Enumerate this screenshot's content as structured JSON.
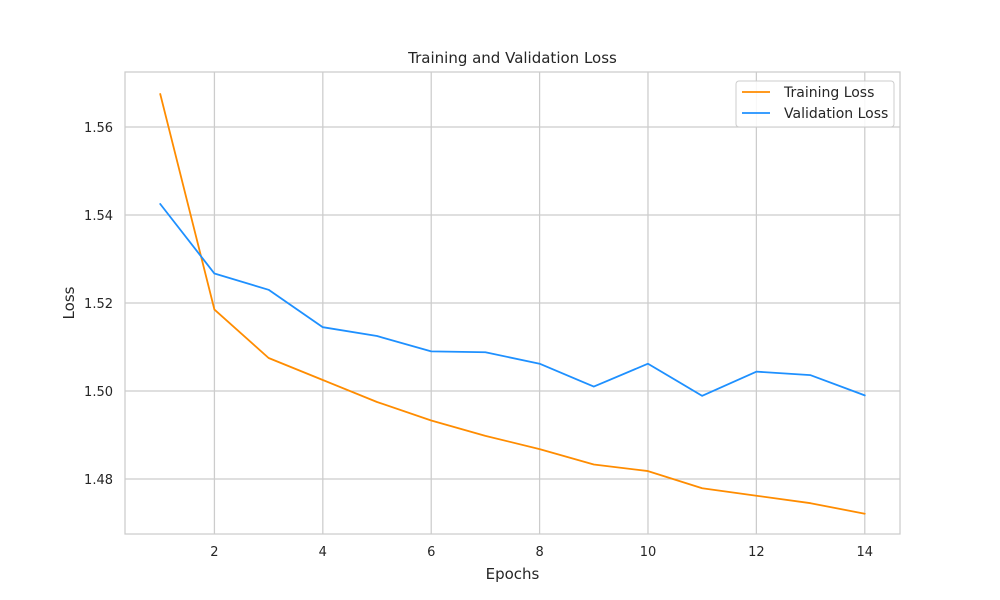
{
  "chart_data": {
    "type": "line",
    "title": "Training and Validation Loss",
    "xlabel": "Epochs",
    "ylabel": "Loss",
    "x": [
      1,
      2,
      3,
      4,
      5,
      6,
      7,
      8,
      9,
      10,
      11,
      12,
      13,
      14
    ],
    "xlim": [
      0.35,
      14.65
    ],
    "ylim": [
      1.4675,
      1.5725
    ],
    "xticks": [
      2,
      4,
      6,
      8,
      10,
      12,
      14
    ],
    "xtick_labels": [
      "2",
      "4",
      "6",
      "8",
      "10",
      "12",
      "14"
    ],
    "yticks": [
      1.48,
      1.5,
      1.52,
      1.54,
      1.56
    ],
    "ytick_labels": [
      "1.48",
      "1.50",
      "1.52",
      "1.54",
      "1.56"
    ],
    "grid": true,
    "legend_position": "top-right",
    "series": [
      {
        "name": "Training Loss",
        "color": "#FF8C00",
        "values": [
          1.5675,
          1.5185,
          1.5075,
          1.5025,
          1.4975,
          1.4933,
          1.4898,
          1.4868,
          1.4833,
          1.4818,
          1.4779,
          1.4762,
          1.4745,
          1.4721
        ]
      },
      {
        "name": "Validation Loss",
        "color": "#1E90FF",
        "values": [
          1.5425,
          1.5267,
          1.523,
          1.5145,
          1.5125,
          1.509,
          1.5088,
          1.5062,
          1.501,
          1.5062,
          1.4989,
          1.5044,
          1.5036,
          1.499
        ]
      }
    ]
  }
}
